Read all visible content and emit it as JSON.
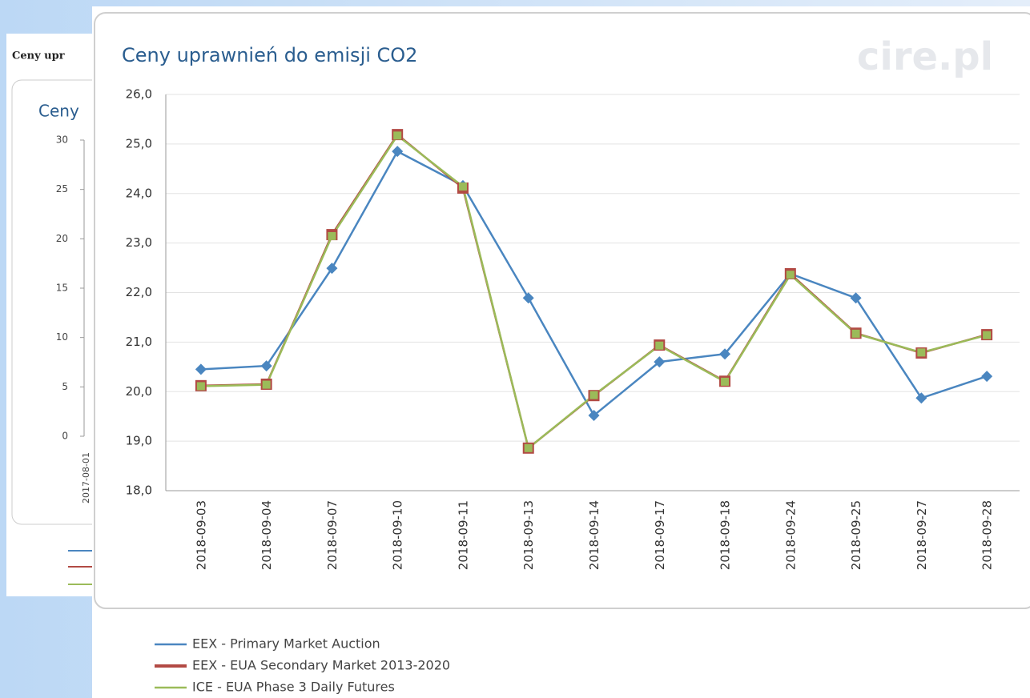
{
  "background": {
    "heading": "Ceny upr",
    "title": "Ceny",
    "yticks": [
      0,
      5,
      10,
      15,
      20,
      25,
      30
    ],
    "ylim": [
      0,
      30
    ],
    "xlabel": "2017-08-01"
  },
  "watermark": "cire.pl",
  "chart_data": {
    "type": "line",
    "title": "Ceny uprawnień do emisji CO2",
    "categories": [
      "2018-09-03",
      "2018-09-04",
      "2018-09-07",
      "2018-09-10",
      "2018-09-11",
      "2018-09-13",
      "2018-09-14",
      "2018-09-17",
      "2018-09-18",
      "2018-09-24",
      "2018-09-25",
      "2018-09-27",
      "2018-09-28"
    ],
    "series": [
      {
        "name": "EEX - Primary Market Auction",
        "color": "#4a86c0",
        "values": [
          20.45,
          20.52,
          22.49,
          24.85,
          24.16,
          21.89,
          19.52,
          20.6,
          20.76,
          22.38,
          21.89,
          19.87,
          20.31
        ]
      },
      {
        "name": "EEX - EUA Secondary Market 2013-2020",
        "color": "#b24a44",
        "values": [
          20.12,
          20.15,
          23.17,
          25.19,
          24.11,
          18.86,
          19.92,
          20.94,
          20.21,
          22.38,
          21.18,
          20.78,
          21.15
        ]
      },
      {
        "name": "ICE - EUA Phase 3 Daily Futures",
        "color": "#9bbb59",
        "values": [
          20.11,
          20.14,
          23.14,
          25.17,
          24.14,
          18.86,
          19.93,
          20.93,
          20.2,
          22.36,
          21.17,
          20.79,
          21.14
        ]
      }
    ],
    "ylim": [
      18,
      26
    ],
    "yticks": [
      {
        "value": 18,
        "label": "18,0"
      },
      {
        "value": 19,
        "label": "19,0"
      },
      {
        "value": 20,
        "label": "20,0"
      },
      {
        "value": 21,
        "label": "21,0"
      },
      {
        "value": 22,
        "label": "22,0"
      },
      {
        "value": 23,
        "label": "23,0"
      },
      {
        "value": 24,
        "label": "24,0"
      },
      {
        "value": 25,
        "label": "25,0"
      },
      {
        "value": 26,
        "label": "26,0"
      }
    ],
    "grid": true
  }
}
